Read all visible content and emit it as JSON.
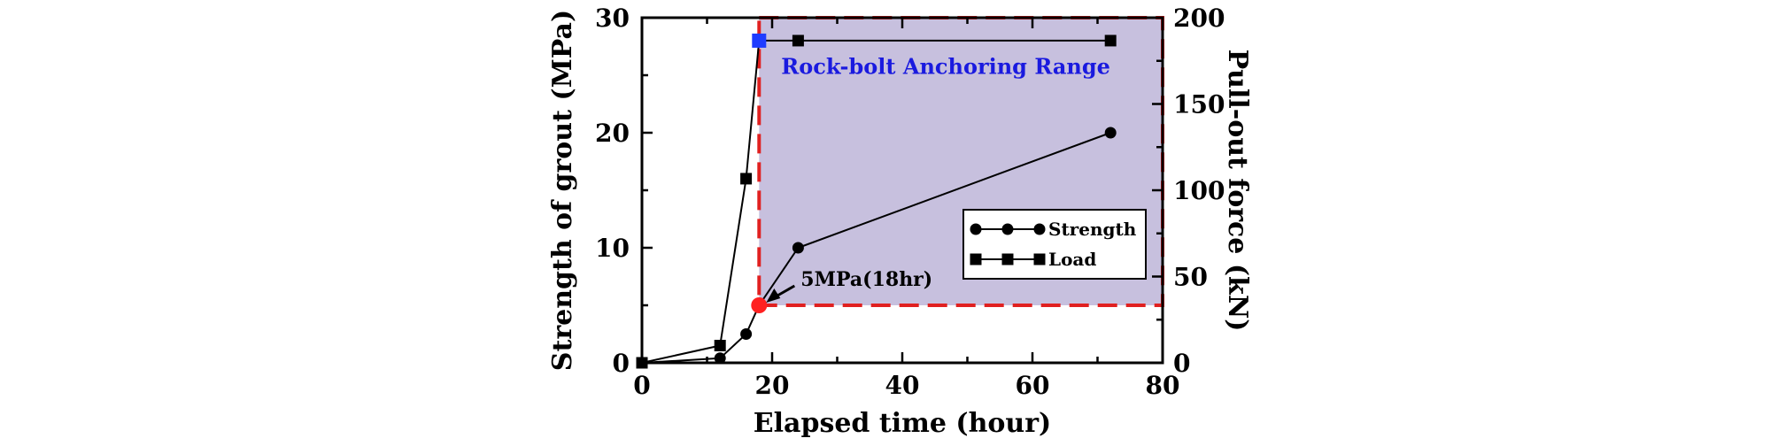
{
  "chart_data": {
    "type": "line",
    "xlabel": "Elapsed time (hour)",
    "ylabel": "Strength of grout (MPa)",
    "y2label": "Pull-out force (kN)",
    "xlim": [
      0,
      80
    ],
    "ylim": [
      0,
      30
    ],
    "y2lim": [
      0,
      200
    ],
    "x_ticks": [
      0,
      20,
      40,
      60,
      80
    ],
    "y_ticks": [
      0,
      10,
      20,
      30
    ],
    "y2_ticks": [
      0,
      50,
      100,
      150,
      200
    ],
    "grid": false,
    "legend_position": "lower-right",
    "series": [
      {
        "name": "Strength",
        "marker": "circle",
        "axis": "left",
        "x": [
          0,
          12,
          16,
          18,
          24,
          72
        ],
        "y": [
          0,
          0.4,
          2.5,
          5,
          10,
          20
        ]
      },
      {
        "name": "Load",
        "marker": "square",
        "axis": "right",
        "x": [
          0,
          12,
          16,
          18,
          24,
          72
        ],
        "y": [
          0,
          10,
          106.7,
          186.7,
          186.7,
          186.7
        ]
      }
    ],
    "anchoring_range": {
      "label": "Rock-bolt Anchoring Range",
      "x_start": 18,
      "x_end": 80,
      "y_start": 5,
      "y_end": 30,
      "fill_color": "#c7c0de",
      "border_color": "#e02020",
      "label_color": "#1a1adf"
    },
    "annotation": {
      "text": "5MPa(18hr)",
      "x": 18,
      "y": 5,
      "marker_color": "#ff2020"
    },
    "highlight_load_point": {
      "x": 18,
      "y": 186.7,
      "marker_color": "#1f3cff"
    }
  }
}
